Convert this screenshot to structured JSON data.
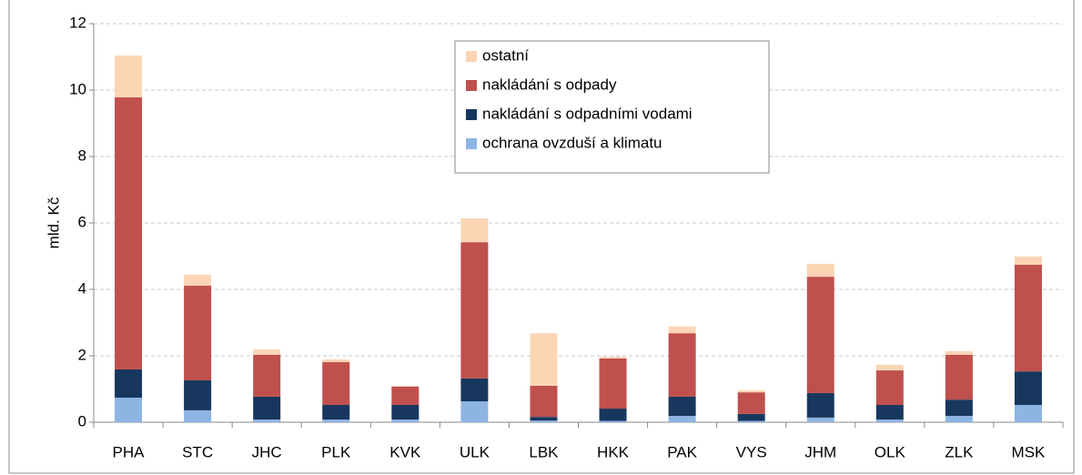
{
  "chart_data": {
    "type": "stacked_bar",
    "y_label": "mld. Kč",
    "categories": [
      "PHA",
      "STC",
      "JHC",
      "PLK",
      "KVK",
      "ULK",
      "LBK",
      "HKK",
      "PAK",
      "VYS",
      "JHM",
      "OLK",
      "ZLK",
      "MSK"
    ],
    "series": [
      {
        "name": "ochrana ovzduší a klimatu",
        "color": "#8db4e2",
        "values": [
          0.74,
          0.36,
          0.08,
          0.08,
          0.08,
          0.63,
          0.05,
          0.04,
          0.19,
          0.04,
          0.14,
          0.08,
          0.19,
          0.52
        ]
      },
      {
        "name": "nakládání s odpadními vodami",
        "color": "#17375e",
        "values": [
          0.85,
          0.9,
          0.69,
          0.44,
          0.44,
          0.69,
          0.11,
          0.37,
          0.58,
          0.21,
          0.74,
          0.44,
          0.49,
          1.01
        ]
      },
      {
        "name": "nakládání s odpady",
        "color": "#c0504d",
        "values": [
          8.19,
          2.85,
          1.26,
          1.29,
          0.55,
          4.1,
          0.94,
          1.51,
          1.91,
          0.65,
          3.5,
          1.04,
          1.35,
          3.21
        ]
      },
      {
        "name": "ostatní",
        "color": "#fcd5b4",
        "values": [
          1.26,
          0.33,
          0.16,
          0.08,
          0.03,
          0.72,
          1.58,
          0.05,
          0.2,
          0.06,
          0.39,
          0.17,
          0.11,
          0.25
        ]
      }
    ],
    "ylim": [
      0,
      12
    ],
    "yticks": [
      0,
      2,
      4,
      6,
      8,
      10,
      12
    ],
    "grid": true,
    "legend": "top"
  }
}
